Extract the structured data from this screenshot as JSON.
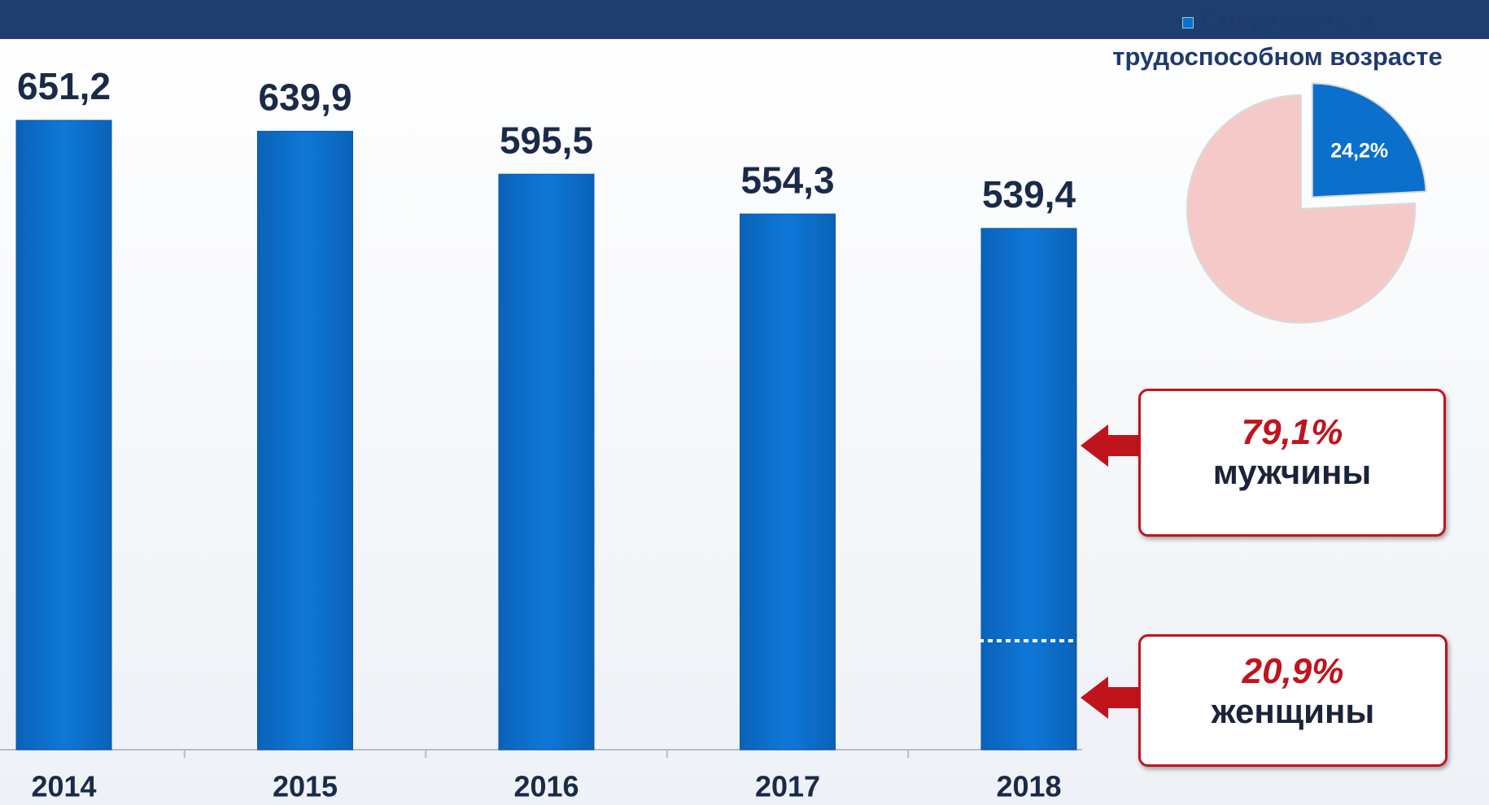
{
  "chart_data": [
    {
      "type": "bar",
      "categories": [
        "2014",
        "2015",
        "2016",
        "2017",
        "2018"
      ],
      "values": [
        651.2,
        639.9,
        595.5,
        554.3,
        539.4
      ],
      "value_labels": [
        "651,2",
        "639,9",
        "595,5",
        "554,3",
        "539,4"
      ],
      "color": "#0b6fcc",
      "ylim": [
        0,
        700
      ],
      "annotations": [
        {
          "value": 79.1,
          "label": "79,1%",
          "text": "мужчины"
        },
        {
          "value": 20.9,
          "label": "20,9%",
          "text": "женщины"
        }
      ]
    },
    {
      "type": "pie",
      "categories": [
        "Смертность в трудоспособном возрасте",
        null
      ],
      "values": [
        24.2,
        75.8
      ],
      "value_labels": [
        "24,2%",
        null
      ],
      "colors": [
        "#0b6fcc",
        "#f6c9c9"
      ]
    }
  ]
}
